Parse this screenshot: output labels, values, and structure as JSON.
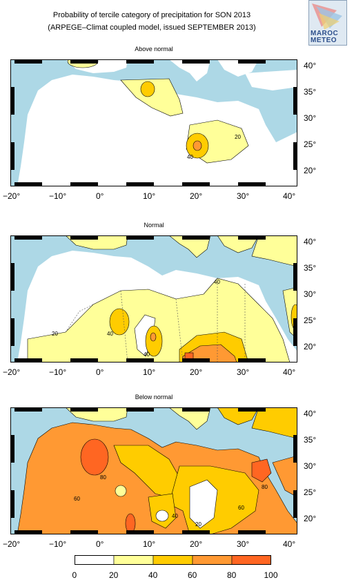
{
  "header": {
    "title_line1": "Probability of tercile category of precipitation for SON 2013",
    "title_line2": "(ARPEGE–Climat coupled model, issued SEPTEMBER 2013)"
  },
  "logo": {
    "line1": "MAROC",
    "line2": "METEO"
  },
  "axes": {
    "lat_ticks": [
      "40°",
      "35°",
      "30°",
      "25°",
      "20°"
    ],
    "lon_ticks": [
      "−20°",
      "−10°",
      "0°",
      "10°",
      "20°",
      "30°",
      "40°"
    ],
    "lat_range": [
      17.5,
      41
    ],
    "lon_range": [
      -20,
      40
    ]
  },
  "panels": [
    {
      "title": "Above normal",
      "contour_labels": [
        "20",
        "40"
      ]
    },
    {
      "title": "Normal",
      "contour_labels": [
        "20",
        "40",
        "40",
        "40"
      ]
    },
    {
      "title": "Below normal",
      "contour_labels": [
        "40",
        "60",
        "60",
        "80",
        "80",
        "20"
      ]
    }
  ],
  "colorbar": {
    "ticks": [
      "0",
      "20",
      "40",
      "60",
      "80",
      "100"
    ],
    "colors": [
      "#ffffff",
      "#ffff99",
      "#ffcc00",
      "#ff9933",
      "#ff6622"
    ]
  },
  "colors": {
    "sea": "#add8e6",
    "frame": "#000000"
  }
}
